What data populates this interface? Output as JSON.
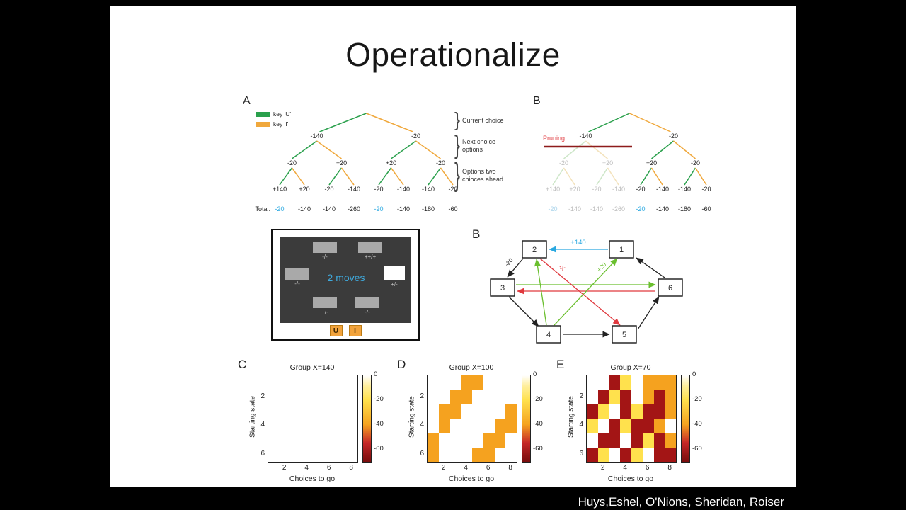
{
  "slide": {
    "title": "Operationalize",
    "attribution": "Huys,Eshel, O'Nions, Sheridan, Roiser"
  },
  "colors": {
    "key_u_green": "#2aa04c",
    "key_i_orange": "#f0a83c",
    "highlight_blue": "#29a8e0",
    "faded_blue": "#a9d3ea",
    "faded_grey": "#bdbdbd",
    "pruning_red": "#e0393e",
    "prune_line_dark_red": "#8e1b1b",
    "diagram_green": "#6abf2e",
    "diagram_red": "#e0393e",
    "diagram_blue": "#29a8e0",
    "heat_yellow": "#ffe14d",
    "heat_orange": "#f5a21f",
    "heat_dark_red": "#a31515",
    "screen_grey": "#3b3b3b",
    "key_cap_orange": "#f2a33c",
    "moves_blue": "#3fa9dc"
  },
  "legend": {
    "items": [
      {
        "label": "key 'U'",
        "color_key": "key_u_green"
      },
      {
        "label": "key 'I'",
        "color_key": "key_i_orange"
      }
    ]
  },
  "tree_a": {
    "panel_label": "A",
    "level1": [
      "-140",
      "-20"
    ],
    "level2": [
      "-20",
      "+20",
      "+20",
      "-20"
    ],
    "leaves": [
      "+140",
      "+20",
      "-20",
      "-140",
      "-20",
      "-140",
      "-140",
      "-20"
    ],
    "total_label": "Total:",
    "totals": [
      "-20",
      "-140",
      "-140",
      "-260",
      "-20",
      "-140",
      "-180",
      "-60"
    ],
    "highlighted_total_indices": [
      0,
      4
    ],
    "pruned": false
  },
  "annotation_braces": {
    "items": [
      "Current choice",
      "Next choice options",
      "Options two chioces ahead"
    ]
  },
  "tree_b": {
    "panel_label": "B",
    "pruning_label": "Pruning",
    "level1": [
      "-140",
      "-20"
    ],
    "level2": [
      "-20",
      "+20",
      "+20",
      "-20"
    ],
    "leaves": [
      "+140",
      "+20",
      "-20",
      "-140",
      "-20",
      "-140",
      "-140",
      "-20"
    ],
    "totals": [
      "-20",
      "-140",
      "-140",
      "-260",
      "-20",
      "-140",
      "-180",
      "-60"
    ],
    "highlighted_total_indices": [
      0,
      4
    ],
    "faded_total_indices": [
      0,
      1,
      2,
      3
    ],
    "pruned": true
  },
  "task_screen": {
    "moves_text": "2 moves",
    "cells": [
      {
        "caption": "-/-"
      },
      {
        "caption": "++/+"
      },
      {
        "caption": "-/-"
      },
      {
        "caption": "+/-",
        "white": true
      },
      {
        "caption": "+/-"
      },
      {
        "caption": "-/-"
      }
    ],
    "keys": [
      "U",
      "I"
    ]
  },
  "state_diagram": {
    "panel_label": "B",
    "nodes": [
      "2",
      "1",
      "3",
      "6",
      "4",
      "5"
    ],
    "edge_labels": [
      {
        "text": "+140",
        "color": "blue"
      },
      {
        "text": "-20",
        "color": "black"
      },
      {
        "text": "+20",
        "color": "green"
      },
      {
        "text": "-X",
        "color": "red"
      }
    ]
  },
  "chart_data": [
    {
      "type": "heatmap",
      "panel_label": "C",
      "title": "Group X=140",
      "xlabel": "Choices to go",
      "ylabel": "Starting state",
      "x_ticks": [
        2,
        4,
        6,
        8
      ],
      "y_ticks": [
        2,
        4,
        6
      ],
      "x_range": [
        1,
        8
      ],
      "y_range": [
        1,
        6
      ],
      "rows": "starting state 1-6, top to bottom",
      "cols": "choices to go 1-8, left to right",
      "colorbar_ticks": [
        0,
        -20,
        -40,
        -60
      ],
      "colorbar_range": [
        0,
        -70
      ],
      "values": [
        [
          0,
          0,
          0,
          0,
          0,
          0,
          0,
          0
        ],
        [
          0,
          0,
          0,
          0,
          0,
          0,
          0,
          0
        ],
        [
          0,
          0,
          0,
          0,
          0,
          0,
          0,
          0
        ],
        [
          0,
          0,
          0,
          0,
          0,
          0,
          0,
          0
        ],
        [
          0,
          0,
          0,
          0,
          0,
          0,
          0,
          0
        ],
        [
          0,
          0,
          0,
          0,
          0,
          0,
          0,
          0
        ]
      ]
    },
    {
      "type": "heatmap",
      "panel_label": "D",
      "title": "Group X=100",
      "xlabel": "Choices to go",
      "ylabel": "Starting state",
      "x_ticks": [
        2,
        4,
        6,
        8
      ],
      "y_ticks": [
        2,
        4,
        6
      ],
      "x_range": [
        1,
        8
      ],
      "y_range": [
        1,
        6
      ],
      "rows": "starting state 1-6, top to bottom",
      "cols": "choices to go 1-8, left to right",
      "colorbar_ticks": [
        0,
        -20,
        -40,
        -60
      ],
      "colorbar_range": [
        0,
        -70
      ],
      "values": [
        [
          0,
          0,
          0,
          -40,
          -40,
          0,
          0,
          0
        ],
        [
          0,
          0,
          -40,
          -40,
          0,
          0,
          0,
          0
        ],
        [
          0,
          -40,
          -40,
          0,
          0,
          0,
          0,
          -40
        ],
        [
          0,
          -40,
          0,
          0,
          0,
          0,
          -40,
          -40
        ],
        [
          -40,
          0,
          0,
          0,
          0,
          -40,
          -40,
          0
        ],
        [
          -40,
          0,
          0,
          0,
          -40,
          -40,
          0,
          0
        ]
      ]
    },
    {
      "type": "heatmap",
      "panel_label": "E",
      "title": "Group X=70",
      "xlabel": "Choices to go",
      "ylabel": "Starting state",
      "x_ticks": [
        2,
        4,
        6,
        8
      ],
      "y_ticks": [
        2,
        4,
        6
      ],
      "x_range": [
        1,
        8
      ],
      "y_range": [
        1,
        6
      ],
      "rows": "starting state 1-6, top to bottom",
      "cols": "choices to go 1-8, left to right",
      "colorbar_ticks": [
        0,
        -20,
        -40,
        -60
      ],
      "colorbar_range": [
        0,
        -70
      ],
      "values": [
        [
          0,
          0,
          -60,
          -20,
          0,
          -40,
          -40,
          -40
        ],
        [
          0,
          -60,
          -20,
          -60,
          0,
          -40,
          -60,
          -40
        ],
        [
          -60,
          -20,
          0,
          -60,
          -20,
          -60,
          -60,
          -40
        ],
        [
          -20,
          0,
          -60,
          -20,
          -60,
          -60,
          -40,
          0
        ],
        [
          0,
          -60,
          -60,
          0,
          -60,
          -20,
          -60,
          -40
        ],
        [
          -60,
          -20,
          0,
          -60,
          -20,
          0,
          -60,
          -60
        ]
      ]
    }
  ]
}
